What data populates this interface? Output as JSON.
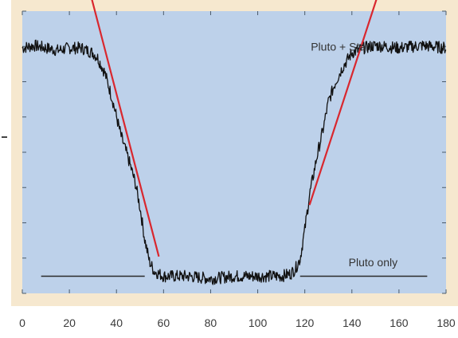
{
  "chart_data": {
    "type": "line",
    "title": "",
    "xlabel": "",
    "ylabel": "",
    "xlim": [
      0,
      180
    ],
    "ylim": [
      0,
      1.15
    ],
    "xticks": [
      0,
      20,
      40,
      60,
      80,
      100,
      120,
      140,
      160,
      180
    ],
    "x_tick_labels": [
      "0",
      "20",
      "40",
      "60",
      "80",
      "100",
      "120",
      "140",
      "160",
      180
    ],
    "grid": false,
    "colors": {
      "outer_background": "#f6e8cf",
      "plot_background": "#bdd1ea",
      "axis": "#4a5a6a",
      "series": "#111111",
      "fit_lines": "#d9272e",
      "baseline": "#2a2a2a",
      "tick_labels": "#3a3a3a"
    },
    "series": [
      {
        "x": [
          0,
          5,
          10,
          15,
          20,
          25,
          30,
          32,
          35,
          38,
          40,
          42,
          45,
          48,
          50,
          52,
          54,
          56,
          60,
          70,
          80,
          90,
          100,
          110,
          114,
          116,
          118,
          120,
          122,
          125,
          128,
          130,
          133,
          136,
          140,
          145,
          150,
          160,
          170,
          180
        ],
        "y": [
          1.0,
          1.01,
          1.0,
          0.99,
          1.0,
          1.0,
          0.98,
          0.96,
          0.9,
          0.8,
          0.72,
          0.64,
          0.55,
          0.45,
          0.35,
          0.22,
          0.13,
          0.09,
          0.07,
          0.07,
          0.06,
          0.07,
          0.07,
          0.07,
          0.08,
          0.1,
          0.14,
          0.26,
          0.4,
          0.55,
          0.68,
          0.78,
          0.86,
          0.92,
          0.98,
          1.0,
          1.01,
          1.0,
          1.01,
          1.0
        ]
      }
    ],
    "fit_lines": [
      {
        "x": [
          29.5,
          58
        ],
        "y": [
          1.2,
          0.15
        ]
      },
      {
        "x": [
          122,
          150.5
        ],
        "y": [
          0.36,
          1.2
        ]
      }
    ],
    "baselines": [
      {
        "x": [
          8,
          52
        ],
        "y": [
          0.07,
          0.07
        ]
      },
      {
        "x": [
          118,
          172
        ],
        "y": [
          0.07,
          0.07
        ]
      }
    ],
    "annotations": [
      {
        "text": "Pluto + Star",
        "x": 135,
        "y": 0.99
      },
      {
        "text": "Pluto only",
        "x": 149,
        "y": 0.11
      }
    ]
  }
}
